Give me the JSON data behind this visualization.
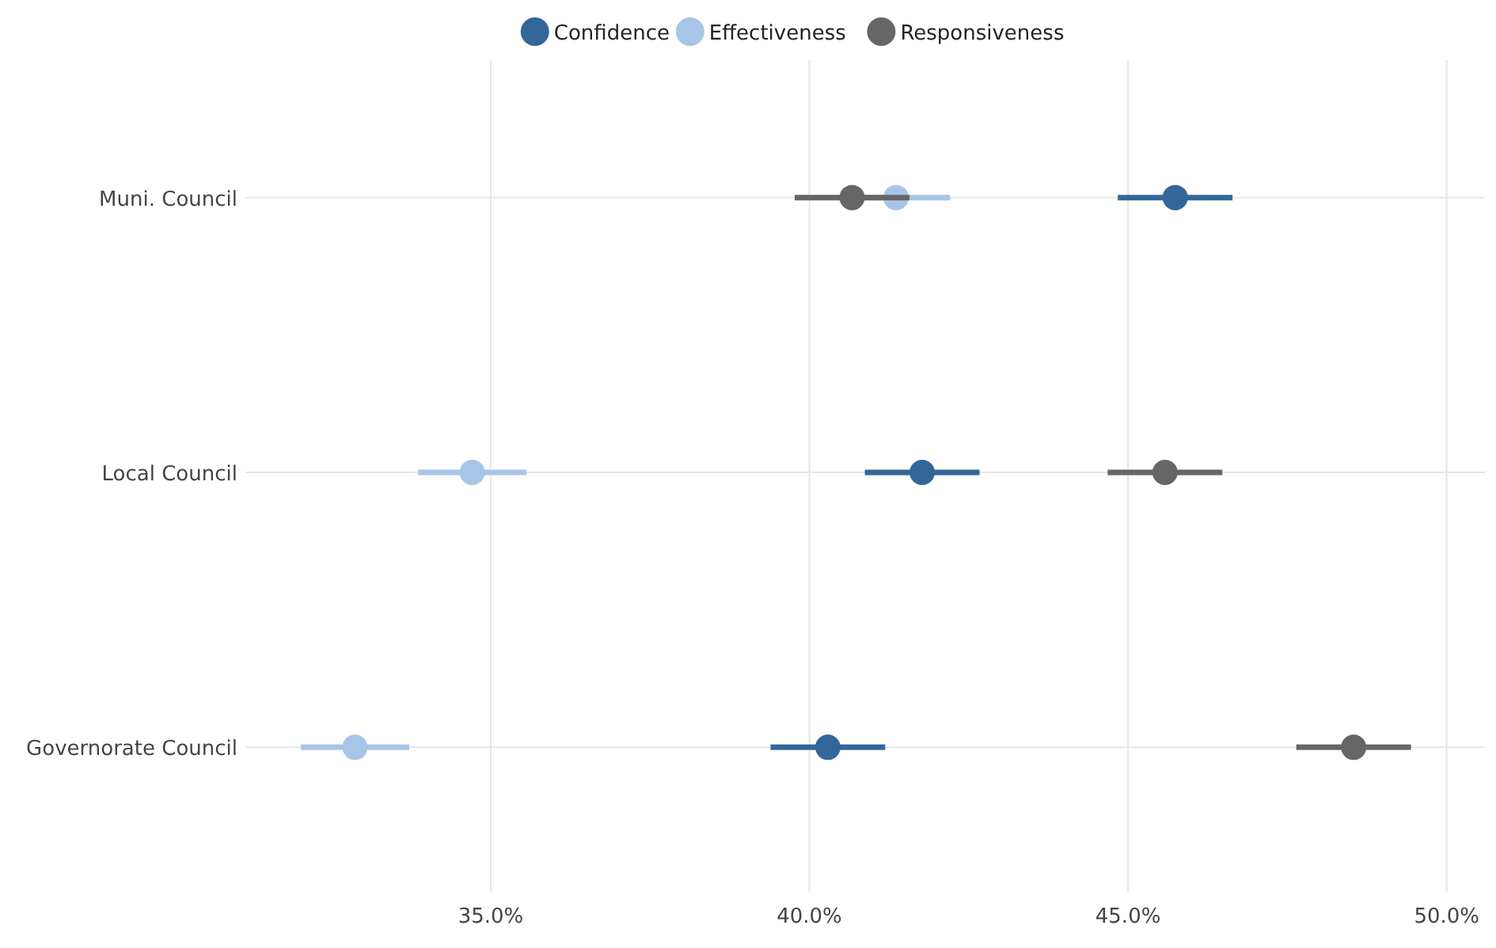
{
  "chart_data": {
    "type": "scatter",
    "orientation": "horizontal",
    "categories": [
      "Muni. Council",
      "Local Council",
      "Governorate Council"
    ],
    "series": [
      {
        "name": "Confidence",
        "color": "#336699",
        "values": [
          45.74,
          41.77,
          40.29
        ],
        "errors": [
          0.9,
          0.9,
          0.9
        ]
      },
      {
        "name": "Effectiveness",
        "color": "#a7c5e6",
        "values": [
          41.36,
          34.71,
          32.87
        ],
        "errors": [
          0.85,
          0.85,
          0.85
        ]
      },
      {
        "name": "Responsiveness",
        "color": "#666666",
        "values": [
          40.67,
          45.58,
          48.54
        ],
        "errors": [
          0.9,
          0.9,
          0.9
        ]
      }
    ],
    "xlim": [
      31.15,
      50.6
    ],
    "xticks": [
      {
        "value": 35,
        "label": "35.0%"
      },
      {
        "value": 40,
        "label": "40.0%"
      },
      {
        "value": 45,
        "label": "45.0%"
      },
      {
        "value": 50,
        "label": "50.0%"
      }
    ],
    "grid": true,
    "legend": "top",
    "marker": "circle"
  }
}
